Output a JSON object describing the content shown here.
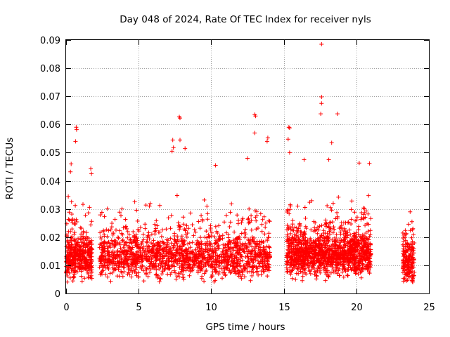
{
  "chart_data": {
    "type": "scatter",
    "title": "Day 048 of 2024, Rate Of TEC Index for receiver nyls",
    "xlabel": "GPS time / hours",
    "ylabel": "ROTI / TECUs",
    "xlim": [
      0,
      25
    ],
    "ylim": [
      0,
      0.09
    ],
    "xticks": [
      "0",
      "5",
      "10",
      "15",
      "20",
      "25"
    ],
    "yticks": [
      "0",
      "0.01",
      "0.02",
      "0.03",
      "0.04",
      "0.05",
      "0.06",
      "0.07",
      "0.08",
      "0.09"
    ],
    "grid": true,
    "marker": "+",
    "color": "#ff0000",
    "data_segments": [
      {
        "x_start": 0.0,
        "x_end": 1.8,
        "y_median": 0.013
      },
      {
        "x_start": 2.3,
        "x_end": 14.05,
        "y_median": 0.013
      },
      {
        "x_start": 15.2,
        "x_end": 21.0,
        "y_median": 0.014
      },
      {
        "x_start": 23.2,
        "x_end": 24.0,
        "y_median": 0.011
      }
    ],
    "gap_hours": [
      [
        1.8,
        2.3
      ],
      [
        14.05,
        15.2
      ],
      [
        21.0,
        23.2
      ]
    ],
    "notable_points": [
      {
        "x": 17.6,
        "y": 0.0885
      },
      {
        "x": 17.6,
        "y": 0.0698
      },
      {
        "x": 17.6,
        "y": 0.0675
      },
      {
        "x": 17.55,
        "y": 0.0638
      },
      {
        "x": 18.7,
        "y": 0.0638
      },
      {
        "x": 13.0,
        "y": 0.0635
      },
      {
        "x": 13.05,
        "y": 0.063
      },
      {
        "x": 7.8,
        "y": 0.0627
      },
      {
        "x": 7.85,
        "y": 0.0623
      },
      {
        "x": 0.7,
        "y": 0.059
      },
      {
        "x": 0.72,
        "y": 0.0582
      },
      {
        "x": 15.35,
        "y": 0.059
      },
      {
        "x": 15.4,
        "y": 0.0588
      },
      {
        "x": 13.0,
        "y": 0.057
      },
      {
        "x": 7.35,
        "y": 0.0545
      },
      {
        "x": 7.85,
        "y": 0.0545
      },
      {
        "x": 0.65,
        "y": 0.054
      },
      {
        "x": 15.3,
        "y": 0.0548
      },
      {
        "x": 18.3,
        "y": 0.0535
      },
      {
        "x": 13.9,
        "y": 0.0553
      },
      {
        "x": 13.85,
        "y": 0.054
      },
      {
        "x": 7.4,
        "y": 0.0518
      },
      {
        "x": 7.3,
        "y": 0.0505
      },
      {
        "x": 8.2,
        "y": 0.0515
      },
      {
        "x": 15.4,
        "y": 0.05
      },
      {
        "x": 12.5,
        "y": 0.048
      },
      {
        "x": 18.1,
        "y": 0.0475
      },
      {
        "x": 16.4,
        "y": 0.0475
      },
      {
        "x": 20.2,
        "y": 0.0463
      },
      {
        "x": 20.9,
        "y": 0.0462
      },
      {
        "x": 10.3,
        "y": 0.0455
      },
      {
        "x": 1.7,
        "y": 0.0443
      },
      {
        "x": 1.75,
        "y": 0.0425
      },
      {
        "x": 0.35,
        "y": 0.046
      },
      {
        "x": 0.3,
        "y": 0.0432
      }
    ]
  }
}
